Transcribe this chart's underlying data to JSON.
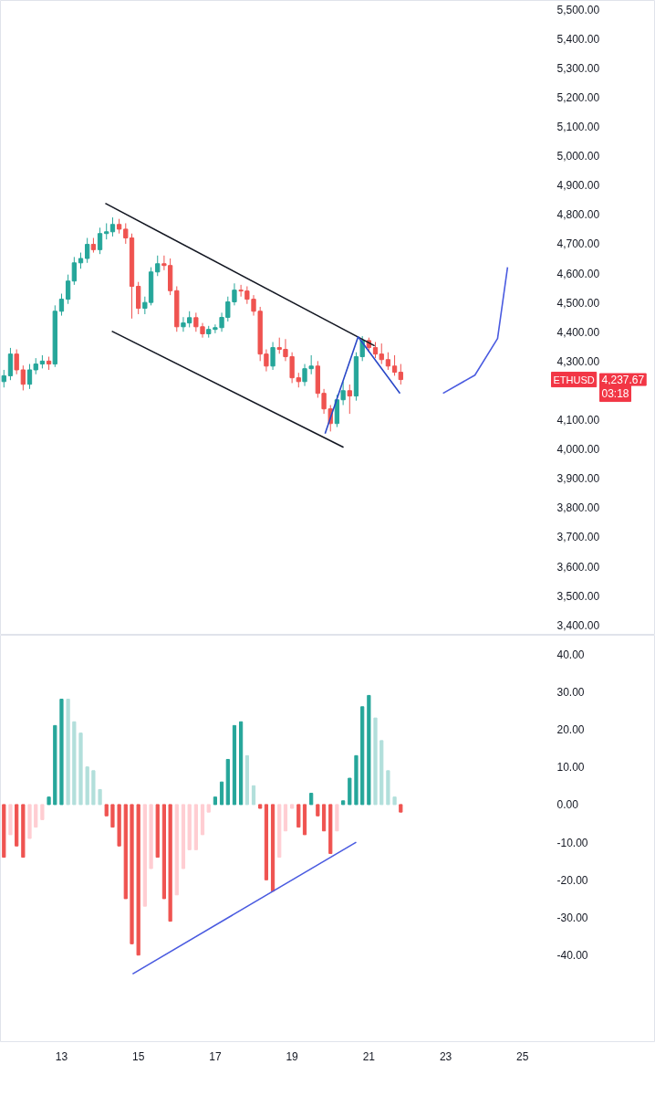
{
  "chart_data": [
    {
      "type": "candlestick",
      "x": [
        11.5,
        11.67,
        11.83,
        12,
        12.17,
        12.33,
        12.5,
        12.67,
        12.83,
        13,
        13.17,
        13.33,
        13.5,
        13.67,
        13.83,
        14,
        14.17,
        14.33,
        14.5,
        14.67,
        14.83,
        15,
        15.17,
        15.33,
        15.5,
        15.67,
        15.83,
        16,
        16.17,
        16.33,
        16.5,
        16.67,
        16.83,
        17,
        17.17,
        17.33,
        17.5,
        17.67,
        17.83,
        18,
        18.17,
        18.33,
        18.5,
        18.67,
        18.83,
        19,
        19.17,
        19.33,
        19.5,
        19.67,
        19.83,
        20,
        20.17,
        20.33,
        20.5,
        20.67,
        20.83,
        21,
        21.17,
        21.33,
        21.5,
        21.67,
        21.83
      ],
      "ohlc": [
        [
          4230,
          4270,
          4210,
          4250
        ],
        [
          4250,
          4345,
          4235,
          4324
        ],
        [
          4324,
          4340,
          4255,
          4270
        ],
        [
          4270,
          4285,
          4200,
          4221
        ],
        [
          4221,
          4290,
          4205,
          4270
        ],
        [
          4270,
          4310,
          4255,
          4290
        ],
        [
          4290,
          4320,
          4275,
          4300
        ],
        [
          4300,
          4315,
          4270,
          4290
        ],
        [
          4290,
          4490,
          4280,
          4470
        ],
        [
          4470,
          4530,
          4455,
          4511
        ],
        [
          4511,
          4595,
          4495,
          4573
        ],
        [
          4573,
          4655,
          4560,
          4635
        ],
        [
          4635,
          4670,
          4615,
          4650
        ],
        [
          4650,
          4720,
          4635,
          4698
        ],
        [
          4698,
          4720,
          4670,
          4680
        ],
        [
          4680,
          4755,
          4665,
          4735
        ],
        [
          4735,
          4770,
          4715,
          4741
        ],
        [
          4741,
          4790,
          4725,
          4766
        ],
        [
          4766,
          4785,
          4735,
          4750
        ],
        [
          4750,
          4770,
          4700,
          4720
        ],
        [
          4720,
          4735,
          4445,
          4555
        ],
        [
          4555,
          4570,
          4460,
          4480
        ],
        [
          4480,
          4520,
          4460,
          4500
        ],
        [
          4500,
          4620,
          4490,
          4604
        ],
        [
          4604,
          4660,
          4590,
          4632
        ],
        [
          4632,
          4660,
          4610,
          4626
        ],
        [
          4626,
          4650,
          4525,
          4540
        ],
        [
          4540,
          4555,
          4400,
          4417
        ],
        [
          4417,
          4450,
          4400,
          4430
        ],
        [
          4430,
          4470,
          4415,
          4448
        ],
        [
          4448,
          4465,
          4400,
          4417
        ],
        [
          4417,
          4430,
          4380,
          4393
        ],
        [
          4393,
          4420,
          4380,
          4408
        ],
        [
          4408,
          4425,
          4395,
          4414
        ],
        [
          4414,
          4465,
          4400,
          4449
        ],
        [
          4449,
          4520,
          4435,
          4502
        ],
        [
          4502,
          4565,
          4490,
          4542
        ],
        [
          4542,
          4560,
          4520,
          4539
        ],
        [
          4539,
          4555,
          4495,
          4511
        ],
        [
          4511,
          4525,
          4455,
          4470
        ],
        [
          4470,
          4485,
          4300,
          4324
        ],
        [
          4324,
          4340,
          4265,
          4283
        ],
        [
          4283,
          4365,
          4270,
          4346
        ],
        [
          4346,
          4380,
          4325,
          4340
        ],
        [
          4340,
          4375,
          4300,
          4315
        ],
        [
          4315,
          4330,
          4225,
          4243
        ],
        [
          4243,
          4260,
          4210,
          4230
        ],
        [
          4230,
          4290,
          4215,
          4274
        ],
        [
          4274,
          4320,
          4255,
          4283
        ],
        [
          4283,
          4300,
          4175,
          4190
        ],
        [
          4190,
          4205,
          4120,
          4137
        ],
        [
          4137,
          4150,
          4060,
          4087
        ],
        [
          4087,
          4185,
          4075,
          4168
        ],
        [
          4168,
          4230,
          4150,
          4199
        ],
        [
          4199,
          4220,
          4120,
          4181
        ],
        [
          4181,
          4330,
          4165,
          4315
        ],
        [
          4315,
          4385,
          4300,
          4370
        ],
        [
          4370,
          4380,
          4330,
          4346
        ],
        [
          4346,
          4365,
          4310,
          4324
        ],
        [
          4324,
          4360,
          4290,
          4305
        ],
        [
          4305,
          4330,
          4270,
          4283
        ],
        [
          4283,
          4320,
          4250,
          4262
        ],
        [
          4262,
          4290,
          4220,
          4237
        ]
      ],
      "series": [
        {
          "type": "line",
          "x": [
            14.14,
            21.15
          ],
          "values": [
            4838,
            4352
          ],
          "color": "#131722"
        },
        {
          "type": "line",
          "x": [
            14.31,
            20.34
          ],
          "values": [
            4402,
            4006
          ],
          "color": "#131722"
        },
        {
          "type": "line",
          "x": [
            19.86,
            20.72,
            21.81
          ],
          "values": [
            4053,
            4383,
            4190
          ],
          "color": "#2948c8"
        },
        {
          "type": "line",
          "x": [
            22.93,
            23.76,
            24.35,
            24.61
          ],
          "values": [
            4190,
            4252,
            4377,
            4620
          ],
          "color": "#4a5be0"
        }
      ],
      "xlim": [
        11.41,
        28.46
      ],
      "ylim": [
        3365,
        5530
      ],
      "yticks": [
        {
          "value": 3400,
          "label": "3,400.00"
        },
        {
          "value": 3500,
          "label": "3,500.00"
        },
        {
          "value": 3600,
          "label": "3,600.00"
        },
        {
          "value": 3700,
          "label": "3,700.00"
        },
        {
          "value": 3800,
          "label": "3,800.00"
        },
        {
          "value": 3900,
          "label": "3,900.00"
        },
        {
          "value": 4000,
          "label": "4,000.00"
        },
        {
          "value": 4100,
          "label": "4,100.00"
        },
        {
          "value": 4300,
          "label": "4,300.00"
        },
        {
          "value": 4400,
          "label": "4,400.00"
        },
        {
          "value": 4500,
          "label": "4,500.00"
        },
        {
          "value": 4600,
          "label": "4,600.00"
        },
        {
          "value": 4700,
          "label": "4,700.00"
        },
        {
          "value": 4800,
          "label": "4,800.00"
        },
        {
          "value": 4900,
          "label": "4,900.00"
        },
        {
          "value": 5000,
          "label": "5,000.00"
        },
        {
          "value": 5100,
          "label": "5,100.00"
        },
        {
          "value": 5200,
          "label": "5,200.00"
        },
        {
          "value": 5300,
          "label": "5,300.00"
        },
        {
          "value": 5400,
          "label": "5,400.00"
        },
        {
          "value": 5500,
          "label": "5,500.00"
        }
      ],
      "tick_labels": "y",
      "annotations": [
        "ETHUSD",
        "4,237.67",
        "03:18"
      ]
    },
    {
      "type": "bar",
      "x": [
        11.5,
        11.67,
        11.83,
        12,
        12.17,
        12.33,
        12.5,
        12.67,
        12.83,
        13,
        13.17,
        13.33,
        13.5,
        13.67,
        13.83,
        14,
        14.17,
        14.33,
        14.5,
        14.67,
        14.83,
        15,
        15.17,
        15.33,
        15.5,
        15.67,
        15.83,
        16,
        16.17,
        16.33,
        16.5,
        16.67,
        16.83,
        17,
        17.17,
        17.33,
        17.5,
        17.67,
        17.83,
        18,
        18.17,
        18.33,
        18.5,
        18.67,
        18.83,
        19,
        19.17,
        19.33,
        19.5,
        19.67,
        19.83,
        20,
        20.17,
        20.33,
        20.5,
        20.67,
        20.83,
        21,
        21.17,
        21.33,
        21.5,
        21.67,
        21.83
      ],
      "series": [
        {
          "type": "bar",
          "values": [
            -14,
            -8,
            -11,
            -14,
            -9,
            -6,
            -4,
            2,
            21,
            28,
            28,
            22,
            19,
            10,
            9,
            4,
            -3,
            -6,
            -11,
            -25,
            -37,
            -40,
            -27,
            -17,
            -14,
            -25,
            -31,
            -24,
            -17,
            -12,
            -12,
            -8,
            -2,
            2,
            6,
            12,
            21,
            22,
            13,
            5,
            -1,
            -20,
            -23,
            -14,
            -7,
            -1,
            -6,
            -8,
            3,
            -3,
            -7,
            -13,
            -7,
            1,
            7,
            13,
            26,
            29,
            23,
            17,
            9,
            2,
            -2
          ],
          "colors": [
            "#ef5350",
            "#ffcdd2",
            "#ef5350",
            "#ef5350",
            "#ffcdd2",
            "#ffcdd2",
            "#ffcdd2",
            "#26a69a",
            "#26a69a",
            "#26a69a",
            "#b2dfdb",
            "#b2dfdb",
            "#b2dfdb",
            "#b2dfdb",
            "#b2dfdb",
            "#b2dfdb",
            "#ef5350",
            "#ef5350",
            "#ef5350",
            "#ef5350",
            "#ef5350",
            "#ef5350",
            "#ffcdd2",
            "#ffcdd2",
            "#ef5350",
            "#ef5350",
            "#ef5350",
            "#ffcdd2",
            "#ffcdd2",
            "#ffcdd2",
            "#ffcdd2",
            "#ffcdd2",
            "#ffcdd2",
            "#26a69a",
            "#26a69a",
            "#26a69a",
            "#26a69a",
            "#26a69a",
            "#b2dfdb",
            "#b2dfdb",
            "#ef5350",
            "#ef5350",
            "#ef5350",
            "#ffcdd2",
            "#ffcdd2",
            "#ffcdd2",
            "#ef5350",
            "#ef5350",
            "#26a69a",
            "#ef5350",
            "#ef5350",
            "#ef5350",
            "#ffcdd2",
            "#26a69a",
            "#26a69a",
            "#26a69a",
            "#26a69a",
            "#26a69a",
            "#b2dfdb",
            "#b2dfdb",
            "#b2dfdb",
            "#b2dfdb",
            "#ef5350"
          ]
        },
        {
          "type": "line",
          "x": [
            14.85,
            20.67
          ],
          "values": [
            -45,
            -10
          ],
          "color": "#4a5be0"
        }
      ],
      "xlim": [
        11.41,
        28.46
      ],
      "xticks": [
        13,
        15,
        17,
        19,
        21,
        23,
        25
      ],
      "ylim": [
        -63,
        45
      ],
      "yticks": [
        {
          "value": 40,
          "label": "40.00"
        },
        {
          "value": 30,
          "label": "30.00"
        },
        {
          "value": 20,
          "label": "20.00"
        },
        {
          "value": 10,
          "label": "10.00"
        },
        {
          "value": 0,
          "label": "0.00"
        },
        {
          "value": -10,
          "label": "-10.00"
        },
        {
          "value": -20,
          "label": "-20.00"
        },
        {
          "value": -30,
          "label": "-30.00"
        },
        {
          "value": -40,
          "label": "-40.00"
        }
      ]
    }
  ]
}
